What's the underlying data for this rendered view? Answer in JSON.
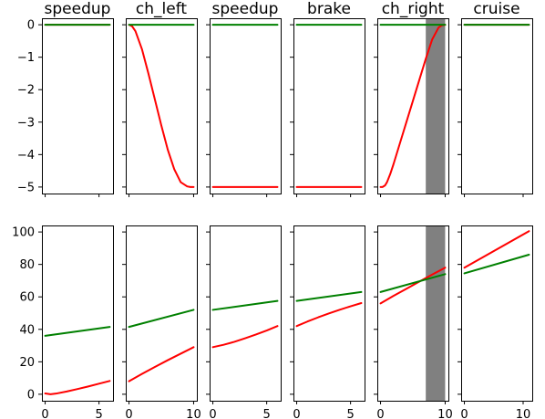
{
  "chart_data": [
    {
      "type": "line",
      "title": "speedup",
      "x": [
        0,
        6
      ],
      "xlim": [
        -0.3,
        6.3
      ],
      "ylim": [
        -5.2,
        0.2
      ],
      "xticks": [
        0,
        5
      ],
      "yticks": [
        0,
        -1,
        -2,
        -3,
        -4,
        -5
      ],
      "ytick_labels": [
        "0",
        "−1",
        "−2",
        "−3",
        "−4",
        "−5"
      ],
      "series": [
        {
          "color": "#ff0000",
          "x": [
            0,
            6
          ],
          "values": [
            0,
            0
          ]
        },
        {
          "color": "#008000",
          "x": [
            0,
            6
          ],
          "values": [
            0,
            0
          ]
        }
      ],
      "shaded": null
    },
    {
      "type": "line",
      "title": "ch_left",
      "xlim": [
        -0.5,
        10.5
      ],
      "ylim": [
        -5.2,
        0.2
      ],
      "xticks": [
        0,
        10
      ],
      "series": [
        {
          "color": "#ff0000",
          "x": [
            0,
            0.5,
            1,
            2,
            3,
            4,
            5,
            6,
            7,
            8,
            9,
            9.5,
            10
          ],
          "values": [
            0,
            -0.05,
            -0.2,
            -0.75,
            -1.5,
            -2.3,
            -3.1,
            -3.85,
            -4.45,
            -4.85,
            -4.98,
            -5,
            -5
          ]
        },
        {
          "color": "#008000",
          "x": [
            0,
            10
          ],
          "values": [
            0,
            0
          ]
        }
      ],
      "shaded": null
    },
    {
      "type": "line",
      "title": "speedup",
      "xlim": [
        -0.3,
        6.3
      ],
      "ylim": [
        -5.2,
        0.2
      ],
      "xticks": [
        0,
        5
      ],
      "series": [
        {
          "color": "#ff0000",
          "x": [
            0,
            6
          ],
          "values": [
            -5,
            -5
          ]
        },
        {
          "color": "#008000",
          "x": [
            0,
            6
          ],
          "values": [
            0,
            0
          ]
        }
      ],
      "shaded": null
    },
    {
      "type": "line",
      "title": "brake",
      "xlim": [
        -0.3,
        6.3
      ],
      "ylim": [
        -5.2,
        0.2
      ],
      "xticks": [
        0,
        5
      ],
      "series": [
        {
          "color": "#ff0000",
          "x": [
            0,
            6
          ],
          "values": [
            -5,
            -5
          ]
        },
        {
          "color": "#008000",
          "x": [
            0,
            6
          ],
          "values": [
            0,
            0
          ]
        }
      ],
      "shaded": null
    },
    {
      "type": "line",
      "title": "ch_right",
      "xlim": [
        -0.5,
        10.5
      ],
      "ylim": [
        -5.2,
        0.2
      ],
      "xticks": [
        0,
        10
      ],
      "series": [
        {
          "color": "#ff0000",
          "x": [
            0,
            0.3,
            0.7,
            1,
            1.5,
            2,
            3,
            4,
            5,
            6,
            7,
            8,
            9,
            9.5,
            10
          ],
          "values": [
            -5,
            -5,
            -4.95,
            -4.85,
            -4.6,
            -4.3,
            -3.65,
            -3,
            -2.35,
            -1.7,
            -1.05,
            -0.45,
            -0.08,
            -0.02,
            0
          ]
        },
        {
          "color": "#008000",
          "x": [
            0,
            10
          ],
          "values": [
            0,
            0
          ]
        }
      ],
      "shaded": [
        7,
        10
      ]
    },
    {
      "type": "line",
      "title": "cruise",
      "xlim": [
        -0.55,
        11.55
      ],
      "ylim": [
        -5.2,
        0.2
      ],
      "xticks": [
        0,
        10
      ],
      "series": [
        {
          "color": "#ff0000",
          "x": [
            0,
            11
          ],
          "values": [
            0,
            0
          ]
        },
        {
          "color": "#008000",
          "x": [
            0,
            11
          ],
          "values": [
            0,
            0
          ]
        }
      ],
      "shaded": null
    },
    {
      "type": "line",
      "xlim": [
        -0.3,
        6.3
      ],
      "ylim": [
        -4,
        104
      ],
      "xticks": [
        0,
        5
      ],
      "xtick_labels": [
        "0",
        "5"
      ],
      "yticks": [
        0,
        20,
        40,
        60,
        80,
        100
      ],
      "series": [
        {
          "color": "#ff0000",
          "x": [
            0,
            0.5,
            1,
            2,
            3,
            4,
            5,
            6
          ],
          "values": [
            0.5,
            0,
            0.4,
            1.7,
            3.2,
            4.8,
            6.5,
            8.2
          ]
        },
        {
          "color": "#008000",
          "x": [
            0,
            6
          ],
          "values": [
            36,
            41.5
          ]
        }
      ],
      "shaded": null
    },
    {
      "type": "line",
      "xlim": [
        -0.5,
        10.5
      ],
      "ylim": [
        -4,
        104
      ],
      "xticks": [
        0,
        10
      ],
      "xtick_labels": [
        "0",
        "10"
      ],
      "series": [
        {
          "color": "#ff0000",
          "x": [
            0,
            2,
            4,
            6,
            8,
            10
          ],
          "values": [
            8,
            12.5,
            16.8,
            21,
            25,
            29
          ]
        },
        {
          "color": "#008000",
          "x": [
            0,
            10
          ],
          "values": [
            41.5,
            52
          ]
        }
      ],
      "shaded": null
    },
    {
      "type": "line",
      "xlim": [
        -0.3,
        6.3
      ],
      "ylim": [
        -4,
        104
      ],
      "xticks": [
        0,
        5
      ],
      "xtick_labels": [
        "0",
        "5"
      ],
      "series": [
        {
          "color": "#ff0000",
          "x": [
            0,
            1,
            2,
            3,
            4,
            5,
            6
          ],
          "values": [
            29,
            30.5,
            32.3,
            34.5,
            36.8,
            39.3,
            42
          ]
        },
        {
          "color": "#008000",
          "x": [
            0,
            6
          ],
          "values": [
            52,
            57.5
          ]
        }
      ],
      "shaded": null
    },
    {
      "type": "line",
      "xlim": [
        -0.3,
        6.3
      ],
      "ylim": [
        -4,
        104
      ],
      "xticks": [
        0,
        5
      ],
      "xtick_labels": [
        "0",
        "5"
      ],
      "series": [
        {
          "color": "#ff0000",
          "x": [
            0,
            1,
            2,
            3,
            4,
            5,
            6
          ],
          "values": [
            42,
            44.8,
            47.4,
            49.8,
            52.1,
            54.2,
            56.2
          ]
        },
        {
          "color": "#008000",
          "x": [
            0,
            6
          ],
          "values": [
            57.5,
            63
          ]
        }
      ],
      "shaded": null
    },
    {
      "type": "line",
      "xlim": [
        -0.5,
        10.5
      ],
      "ylim": [
        -4,
        104
      ],
      "xticks": [
        0,
        10
      ],
      "xtick_labels": [
        "0",
        "10"
      ],
      "series": [
        {
          "color": "#ff0000",
          "x": [
            0,
            2,
            4,
            6,
            8,
            10
          ],
          "values": [
            56,
            60.6,
            65,
            69.4,
            73.8,
            78
          ]
        },
        {
          "color": "#008000",
          "x": [
            0,
            10
          ],
          "values": [
            63,
            74
          ]
        }
      ],
      "shaded": [
        7,
        10
      ]
    },
    {
      "type": "line",
      "xlim": [
        -0.55,
        11.55
      ],
      "ylim": [
        -4,
        104
      ],
      "xticks": [
        0,
        10
      ],
      "xtick_labels": [
        "0",
        "10"
      ],
      "series": [
        {
          "color": "#ff0000",
          "x": [
            0,
            11
          ],
          "values": [
            78,
            100.5
          ]
        },
        {
          "color": "#008000",
          "x": [
            0,
            11
          ],
          "values": [
            74.5,
            86
          ]
        }
      ],
      "shaded": null
    }
  ]
}
